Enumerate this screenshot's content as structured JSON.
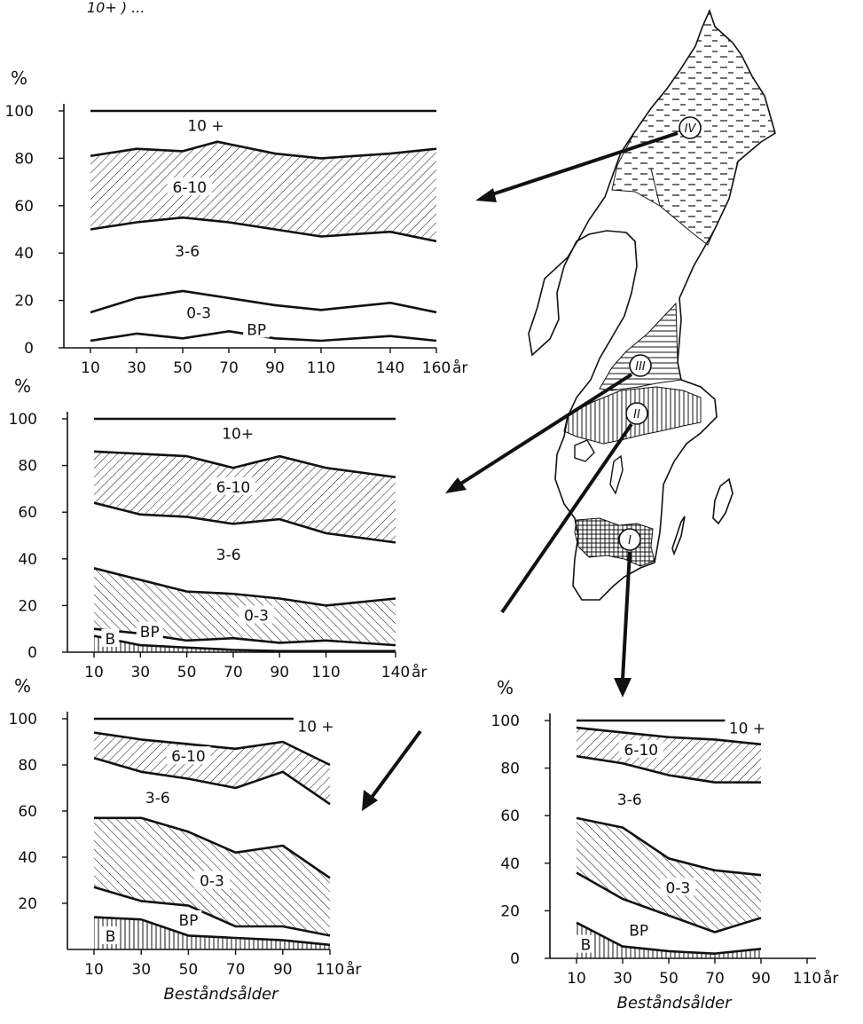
{
  "header_fragment": "10+ ) ...",
  "map": {
    "regions": [
      {
        "label": "IV",
        "pattern": "dashes"
      },
      {
        "label": "III",
        "pattern": "horizontal-lines"
      },
      {
        "label": "II",
        "pattern": "vertical-lines"
      },
      {
        "label": "I",
        "pattern": "cross-hatch"
      }
    ]
  },
  "chart_data": [
    {
      "id": "IV",
      "type": "area",
      "ylabel": "%",
      "xunit": "år",
      "xlabel": "",
      "ylim": [
        0,
        100
      ],
      "yticks": [
        0,
        20,
        40,
        60,
        80,
        100
      ],
      "xticks": [
        10,
        30,
        50,
        70,
        90,
        110,
        140,
        160
      ],
      "xlim": [
        10,
        160
      ],
      "boundaries": [
        {
          "name": "B/BP",
          "points": [
            [
              10,
              3
            ],
            [
              30,
              6
            ],
            [
              50,
              4
            ],
            [
              70,
              7
            ],
            [
              90,
              4
            ],
            [
              110,
              3
            ],
            [
              140,
              5
            ],
            [
              160,
              3
            ]
          ]
        },
        {
          "name": "BP/0-3",
          "points": [
            [
              10,
              15
            ],
            [
              30,
              21
            ],
            [
              50,
              24
            ],
            [
              70,
              21
            ],
            [
              90,
              18
            ],
            [
              110,
              16
            ],
            [
              140,
              19
            ],
            [
              160,
              15
            ]
          ]
        },
        {
          "name": "3-6/6-10",
          "points": [
            [
              10,
              50
            ],
            [
              30,
              53
            ],
            [
              50,
              55
            ],
            [
              70,
              53
            ],
            [
              90,
              50
            ],
            [
              110,
              47
            ],
            [
              140,
              49
            ],
            [
              160,
              45
            ]
          ]
        },
        {
          "name": "6-10/10+",
          "points": [
            [
              10,
              81
            ],
            [
              30,
              84
            ],
            [
              50,
              83
            ],
            [
              65,
              87
            ],
            [
              90,
              82
            ],
            [
              110,
              80
            ],
            [
              140,
              82
            ],
            [
              160,
              84
            ]
          ]
        },
        {
          "name": "top",
          "points": [
            [
              10,
              100
            ],
            [
              160,
              100
            ]
          ]
        }
      ],
      "labels": [
        {
          "text": "10 +",
          "x": 60,
          "y": 93
        },
        {
          "text": "6-10",
          "x": 53,
          "y": 67
        },
        {
          "text": "3-6",
          "x": 52,
          "y": 40
        },
        {
          "text": "0-3",
          "x": 57,
          "y": 14
        },
        {
          "text": "BP",
          "x": 82,
          "y": 7
        }
      ]
    },
    {
      "id": "III",
      "type": "area",
      "ylabel": "%",
      "xunit": "år",
      "xlabel": "",
      "ylim": [
        0,
        100
      ],
      "yticks": [
        0,
        20,
        40,
        60,
        80,
        100
      ],
      "xticks": [
        10,
        30,
        50,
        70,
        90,
        110,
        140
      ],
      "xlim": [
        10,
        140
      ],
      "boundaries": [
        {
          "name": "B/BP",
          "points": [
            [
              10,
              7
            ],
            [
              30,
              3
            ],
            [
              50,
              2
            ],
            [
              70,
              1
            ],
            [
              90,
              0.5
            ],
            [
              110,
              0.5
            ],
            [
              140,
              0.5
            ]
          ]
        },
        {
          "name": "BP/0-3",
          "points": [
            [
              10,
              10
            ],
            [
              30,
              8
            ],
            [
              50,
              5
            ],
            [
              70,
              6
            ],
            [
              90,
              4
            ],
            [
              110,
              5
            ],
            [
              140,
              3
            ]
          ]
        },
        {
          "name": "0-3/3-6",
          "points": [
            [
              10,
              36
            ],
            [
              30,
              31
            ],
            [
              50,
              26
            ],
            [
              70,
              25
            ],
            [
              90,
              23
            ],
            [
              110,
              20
            ],
            [
              140,
              23
            ]
          ]
        },
        {
          "name": "3-6/6-10",
          "points": [
            [
              10,
              64
            ],
            [
              30,
              59
            ],
            [
              50,
              58
            ],
            [
              70,
              55
            ],
            [
              90,
              57
            ],
            [
              110,
              51
            ],
            [
              140,
              47
            ]
          ]
        },
        {
          "name": "6-10/10+",
          "points": [
            [
              10,
              86
            ],
            [
              30,
              85
            ],
            [
              50,
              84
            ],
            [
              70,
              79
            ],
            [
              90,
              84
            ],
            [
              110,
              79
            ],
            [
              140,
              75
            ]
          ]
        },
        {
          "name": "top",
          "points": [
            [
              10,
              100
            ],
            [
              140,
              100
            ]
          ]
        }
      ],
      "labels": [
        {
          "text": "10+",
          "x": 72,
          "y": 93
        },
        {
          "text": "6-10",
          "x": 70,
          "y": 70
        },
        {
          "text": "3-6",
          "x": 68,
          "y": 41
        },
        {
          "text": "0-3",
          "x": 80,
          "y": 15
        },
        {
          "text": "BP",
          "x": 34,
          "y": 8
        },
        {
          "text": "B",
          "x": 17,
          "y": 5
        }
      ]
    },
    {
      "id": "II",
      "type": "area",
      "ylabel": "%",
      "xunit": "år",
      "xlabel": "Beståndsålder",
      "ylim": [
        0,
        100
      ],
      "yticks": [
        20,
        40,
        60,
        80,
        100
      ],
      "xticks": [
        10,
        30,
        50,
        70,
        90,
        110
      ],
      "xlim": [
        10,
        110
      ],
      "boundaries": [
        {
          "name": "B/BP",
          "points": [
            [
              10,
              14
            ],
            [
              30,
              13
            ],
            [
              50,
              6
            ],
            [
              70,
              5
            ],
            [
              90,
              4
            ],
            [
              110,
              2
            ]
          ]
        },
        {
          "name": "BP/0-3",
          "points": [
            [
              10,
              27
            ],
            [
              30,
              21
            ],
            [
              50,
              19
            ],
            [
              70,
              10
            ],
            [
              90,
              10
            ],
            [
              110,
              6
            ]
          ]
        },
        {
          "name": "0-3/3-6",
          "points": [
            [
              10,
              57
            ],
            [
              30,
              57
            ],
            [
              50,
              51
            ],
            [
              70,
              42
            ],
            [
              90,
              45
            ],
            [
              110,
              31
            ]
          ]
        },
        {
          "name": "3-6/6-10",
          "points": [
            [
              10,
              83
            ],
            [
              30,
              77
            ],
            [
              50,
              74
            ],
            [
              70,
              70
            ],
            [
              90,
              77
            ],
            [
              110,
              63
            ]
          ]
        },
        {
          "name": "6-10/10+",
          "points": [
            [
              10,
              94
            ],
            [
              30,
              91
            ],
            [
              50,
              89
            ],
            [
              70,
              87
            ],
            [
              90,
              90
            ],
            [
              110,
              80
            ]
          ]
        },
        {
          "name": "top",
          "points": [
            [
              10,
              100
            ],
            [
              110,
              100
            ]
          ]
        }
      ],
      "labels": [
        {
          "text": "10 +",
          "x": 104,
          "y": 96
        },
        {
          "text": "6-10",
          "x": 50,
          "y": 83
        },
        {
          "text": "3-6",
          "x": 37,
          "y": 65
        },
        {
          "text": "0-3",
          "x": 60,
          "y": 29
        },
        {
          "text": "BP",
          "x": 50,
          "y": 12
        },
        {
          "text": "B",
          "x": 17,
          "y": 5
        }
      ]
    },
    {
      "id": "I",
      "type": "area",
      "ylabel": "%",
      "xunit": "år",
      "xlabel": "Beståndsålder",
      "ylim": [
        0,
        100
      ],
      "yticks": [
        0,
        20,
        40,
        60,
        80,
        100
      ],
      "xticks": [
        10,
        30,
        50,
        70,
        90,
        110
      ],
      "xlim": [
        10,
        110
      ],
      "boundaries": [
        {
          "name": "B/BP",
          "points": [
            [
              10,
              15
            ],
            [
              30,
              5
            ],
            [
              50,
              3
            ],
            [
              70,
              2
            ],
            [
              90,
              4
            ]
          ]
        },
        {
          "name": "BP/0-3",
          "points": [
            [
              10,
              36
            ],
            [
              30,
              25
            ],
            [
              50,
              18
            ],
            [
              70,
              11
            ],
            [
              90,
              17
            ]
          ]
        },
        {
          "name": "0-3/3-6",
          "points": [
            [
              10,
              59
            ],
            [
              30,
              55
            ],
            [
              50,
              42
            ],
            [
              70,
              37
            ],
            [
              90,
              35
            ]
          ]
        },
        {
          "name": "3-6/6-10",
          "points": [
            [
              10,
              85
            ],
            [
              30,
              82
            ],
            [
              50,
              77
            ],
            [
              70,
              74
            ],
            [
              90,
              74
            ]
          ]
        },
        {
          "name": "6-10/10+",
          "points": [
            [
              10,
              97
            ],
            [
              30,
              95
            ],
            [
              50,
              93
            ],
            [
              70,
              92
            ],
            [
              90,
              90
            ]
          ]
        },
        {
          "name": "top",
          "points": [
            [
              10,
              100
            ],
            [
              90,
              100
            ]
          ]
        }
      ],
      "labels": [
        {
          "text": "10 +",
          "x": 84,
          "y": 96
        },
        {
          "text": "6-10",
          "x": 38,
          "y": 87
        },
        {
          "text": "3-6",
          "x": 33,
          "y": 66
        },
        {
          "text": "0-3",
          "x": 54,
          "y": 29
        },
        {
          "text": "BP",
          "x": 37,
          "y": 11
        },
        {
          "text": "B",
          "x": 14,
          "y": 5
        }
      ]
    }
  ]
}
